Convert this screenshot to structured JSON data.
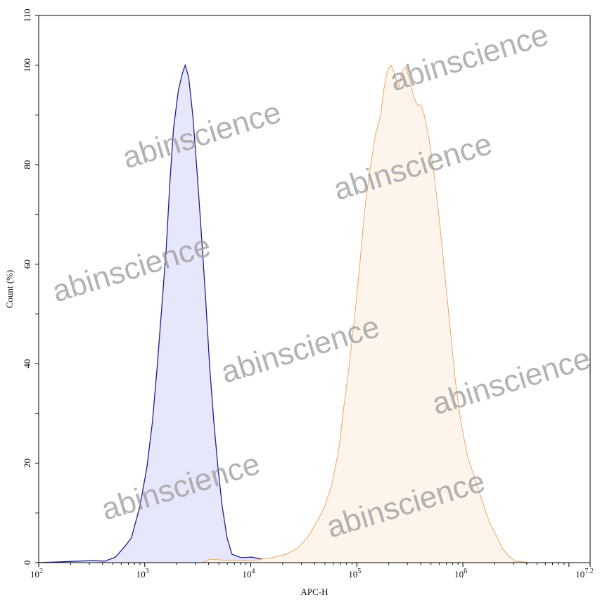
{
  "chart_data": {
    "type": "area",
    "title": "",
    "xlabel": "APC-H",
    "ylabel": "Count (%)",
    "x_scale": "log",
    "xlim": [
      100,
      15848932
    ],
    "ylim": [
      0,
      110
    ],
    "x_ticks": [
      {
        "value": 100,
        "base": "10",
        "exp": "2"
      },
      {
        "value": 1000,
        "base": "10",
        "exp": "3"
      },
      {
        "value": 10000,
        "base": "10",
        "exp": "4"
      },
      {
        "value": 100000,
        "base": "10",
        "exp": "5"
      },
      {
        "value": 1000000,
        "base": "10",
        "exp": "6"
      },
      {
        "value": 15848932,
        "base": "10",
        "exp": "7.2"
      }
    ],
    "y_ticks": [
      "0",
      "20",
      "40",
      "60",
      "80",
      "100",
      "110"
    ],
    "grid": false,
    "legend": "none",
    "series": [
      {
        "color": "#1f1f8f",
        "fill": "#e6e7fb",
        "x": [
          100,
          311,
          422,
          529,
          664,
          750,
          899,
          1047,
          1181,
          1313,
          1460,
          1599,
          1725,
          1862,
          2070,
          2266,
          2408,
          2596,
          2843,
          3115,
          3411,
          3736,
          4091,
          4480,
          4906,
          5373,
          5971,
          6637,
          8087,
          10160,
          12740,
          18620,
          39720,
          114600
        ],
        "y": [
          0,
          0.4,
          0.3,
          1.1,
          3.5,
          5,
          11.3,
          19.1,
          28.3,
          39.6,
          52.3,
          63.6,
          76.4,
          87,
          94.8,
          98.4,
          100,
          97.6,
          89.8,
          78.5,
          66.5,
          53.7,
          39.6,
          28.3,
          19.1,
          11.3,
          5,
          1.7,
          1,
          1.1,
          0.7,
          0.4,
          0.1,
          0
        ]
      },
      {
        "color": "#e8a86a",
        "fill": "#fdf4ec",
        "x": [
          3516,
          4091,
          6442,
          10160,
          16000,
          21660,
          27200,
          34100,
          42800,
          49800,
          57900,
          67400,
          75000,
          84700,
          95500,
          106200,
          118100,
          133400,
          150500,
          167300,
          180600,
          194700,
          210000,
          230000,
          248000,
          268000,
          289000,
          316000,
          346000,
          373000,
          403000,
          434000,
          483000,
          537000,
          607000,
          685000,
          762000,
          847000,
          955000,
          1112000,
          1294000,
          1506000,
          1751000,
          2037000,
          2371000,
          2679000,
          3115000,
          4345000
        ],
        "y": [
          0,
          0.7,
          0.4,
          0.4,
          1,
          1.7,
          2.8,
          5,
          8.5,
          11.3,
          15.6,
          22.6,
          31,
          39.6,
          49.5,
          59.4,
          70.7,
          79.2,
          86.3,
          89.8,
          95.5,
          99,
          100,
          98,
          95.5,
          99,
          99.6,
          97,
          93.4,
          92,
          92,
          89.8,
          84.9,
          77.8,
          67.9,
          56.6,
          46.7,
          36.8,
          28.3,
          21.2,
          17,
          12.7,
          8.5,
          5.7,
          2.8,
          1.4,
          0.3,
          0
        ]
      }
    ]
  },
  "watermark": "abinscience"
}
